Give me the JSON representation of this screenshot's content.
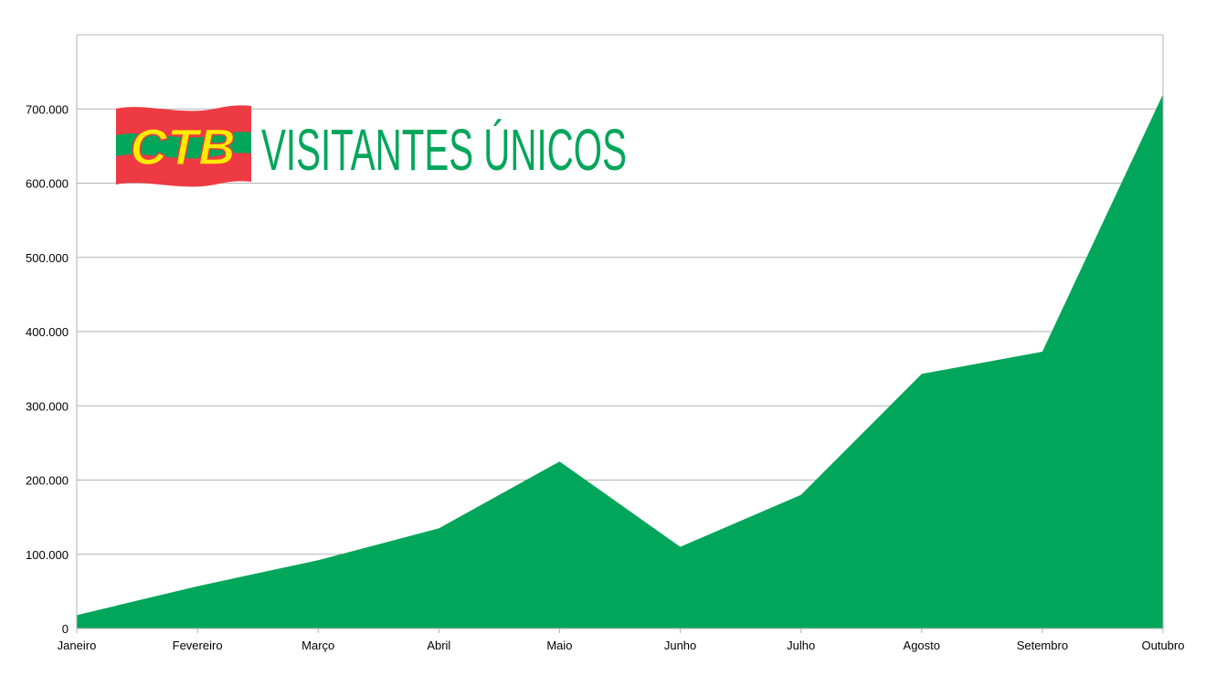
{
  "chart_data": {
    "type": "area",
    "title": "VISITANTES ÚNICOS",
    "logo_text": "CTB",
    "categories": [
      "Janeiro",
      "Fevereiro",
      "Março",
      "Abril",
      "Maio",
      "Junho",
      "Julho",
      "Agosto",
      "Setembro",
      "Outubro"
    ],
    "series": [
      {
        "values": [
          18000,
          57000,
          92000,
          135000,
          225000,
          110000,
          180000,
          343000,
          373000,
          720000
        ]
      }
    ],
    "yticks": [
      "0",
      "100.000",
      "200.000",
      "300.000",
      "400.000",
      "500.000",
      "600.000",
      "700.000"
    ],
    "ylim": [
      0,
      800000
    ],
    "grid": true,
    "colors": {
      "area": "#00a65a",
      "title": "#00a65a",
      "gridline": "#b3b3b3",
      "axis": "#b3b3b3",
      "logo_red": "#ee3a43",
      "logo_green": "#00a65a",
      "logo_yellow": "#ffeb00"
    }
  }
}
